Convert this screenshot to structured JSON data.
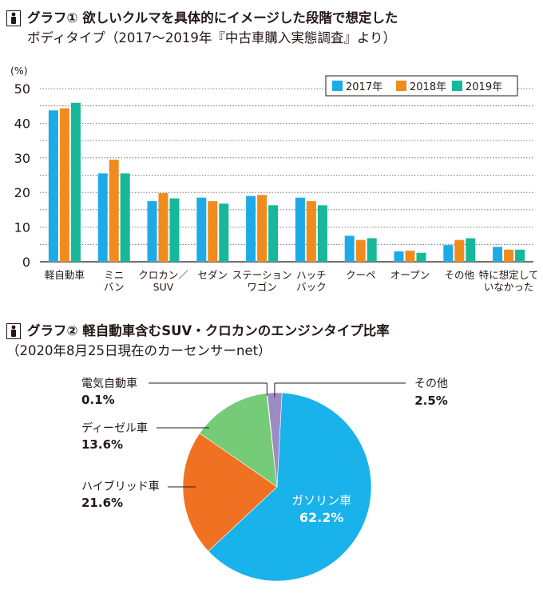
{
  "graph1": {
    "title_line1": "グラフ①  欲しいクルマを具体的にイメージした段階で想定した",
    "title_line2": "ボディタイプ（2017〜2019年『中古車購入実態調査』より）"
  },
  "graph2": {
    "title_line1": "グラフ②  軽自動車含むSUV・クロカンのエンジンタイプ比率",
    "title_line2": "（2020年8月25日現在のカーセンサーnet）"
  },
  "chart_data": [
    {
      "type": "bar",
      "unit_label": "(%)",
      "ylim": [
        0,
        50
      ],
      "yticks": [
        0,
        10,
        20,
        30,
        40,
        50
      ],
      "grid": true,
      "legend_position": "top-right",
      "categories": [
        [
          "軽自動車"
        ],
        [
          "ミニ",
          "バン"
        ],
        [
          "クロカン／",
          "SUV"
        ],
        [
          "セダン"
        ],
        [
          "ステーション",
          "ワゴン"
        ],
        [
          "ハッチ",
          "バック"
        ],
        [
          "クーペ"
        ],
        [
          "オープン"
        ],
        [
          "その他"
        ],
        [
          "特に想定して",
          "いなかった"
        ]
      ],
      "series": [
        {
          "name": "2017年",
          "color": "#1eaae7",
          "values": [
            43.7,
            25.5,
            17.5,
            18.5,
            19.0,
            18.5,
            7.5,
            3.0,
            4.8,
            4.3
          ]
        },
        {
          "name": "2018年",
          "color": "#f08c1e",
          "values": [
            44.3,
            29.5,
            19.8,
            17.5,
            19.3,
            17.5,
            6.3,
            3.2,
            6.3,
            3.5
          ]
        },
        {
          "name": "2019年",
          "color": "#16b79b",
          "values": [
            45.9,
            25.5,
            18.3,
            16.8,
            16.3,
            16.3,
            6.8,
            2.6,
            6.8,
            3.5
          ]
        }
      ]
    },
    {
      "type": "pie",
      "slices": [
        {
          "name": "ガソリン車",
          "value": 62.2,
          "label": "62.2%",
          "color": "#19b2ea",
          "label_color": "#ffffff",
          "label_mode": "inside"
        },
        {
          "name": "ハイブリッド車",
          "value": 21.6,
          "label": "21.6%",
          "color": "#f07121",
          "label_color": "#231815",
          "label_mode": "left"
        },
        {
          "name": "ディーゼル車",
          "value": 13.6,
          "label": "13.6%",
          "color": "#76cb78",
          "label_color": "#231815",
          "label_mode": "left"
        },
        {
          "name": "電気自動車",
          "value": 0.1,
          "label": "0.1%",
          "color": "#e8326f",
          "label_color": "#231815",
          "label_mode": "left"
        },
        {
          "name": "その他",
          "value": 2.5,
          "label": "2.5%",
          "color": "#9b8cc4",
          "label_color": "#231815",
          "label_mode": "right"
        }
      ]
    }
  ]
}
